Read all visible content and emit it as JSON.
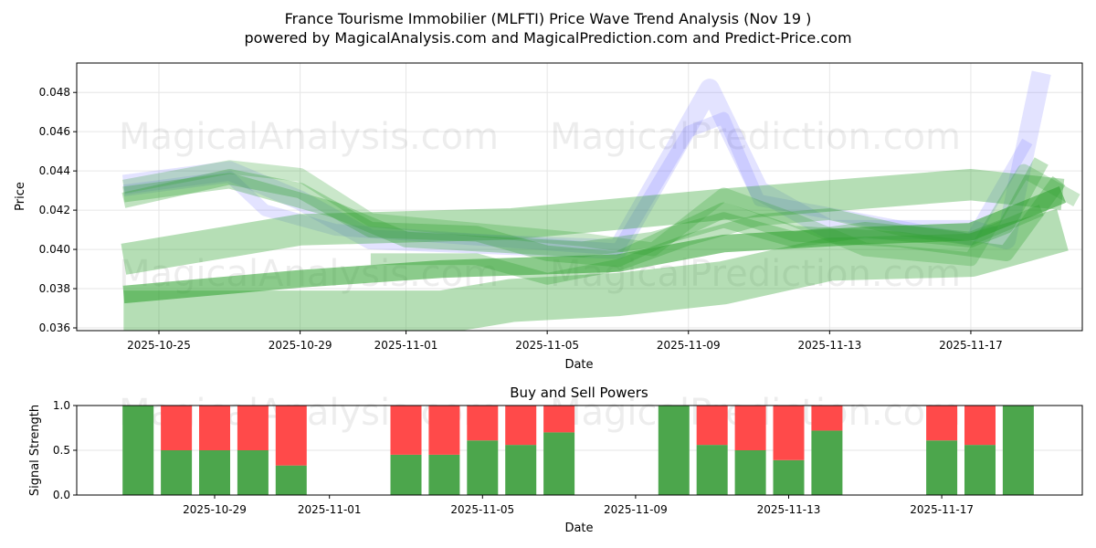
{
  "chart_data": [
    {
      "type": "line",
      "title": "France Tourisme Immobilier (MLFTI) Price Wave Trend Analysis (Nov 19 )",
      "subtitle": "powered by MagicalAnalysis.com and MagicalPrediction.com and Predict-Price.com",
      "xlabel": "Date",
      "ylabel": "Price",
      "x_unit": "days since 2025-10-25",
      "xlim": [
        -1.6,
        26.1
      ],
      "ylim": [
        0.03586,
        0.0495
      ],
      "xticks": [
        {
          "day": 0,
          "label": "2025-10-25"
        },
        {
          "day": 4,
          "label": "2025-10-29"
        },
        {
          "day": 7,
          "label": "2025-11-01"
        },
        {
          "day": 11,
          "label": "2025-11-05"
        },
        {
          "day": 15,
          "label": "2025-11-09"
        },
        {
          "day": 19,
          "label": "2025-11-13"
        },
        {
          "day": 23,
          "label": "2025-11-17"
        }
      ],
      "yticks": [
        0.036,
        0.038,
        0.04,
        0.042,
        0.044,
        0.046,
        0.048
      ],
      "ytick_labels": [
        "0.036",
        "0.038",
        "0.040",
        "0.042",
        "0.044",
        "0.046",
        "0.048"
      ],
      "grid": true,
      "watermarks": [
        "MagicalAnalysis.com",
        "MagicalPrediction.com"
      ],
      "series": [
        {
          "name": "wave-blue-1",
          "color": "#6666ff",
          "opacity": 0.18,
          "width": 0.001,
          "points": [
            [
              -1,
              0.0433
            ],
            [
              2,
              0.044
            ],
            [
              4,
              0.0425
            ],
            [
              6,
              0.0405
            ],
            [
              13,
              0.04
            ],
            [
              15.6,
              0.0482
            ],
            [
              17,
              0.043
            ],
            [
              19,
              0.041
            ],
            [
              23,
              0.041
            ],
            [
              24,
              0.0405
            ],
            [
              25,
              0.049
            ]
          ]
        },
        {
          "name": "wave-blue-2",
          "color": "#6666ff",
          "opacity": 0.18,
          "width": 0.0006,
          "points": [
            [
              -1,
              0.043
            ],
            [
              2,
              0.0437
            ],
            [
              3,
              0.042
            ],
            [
              5,
              0.041
            ],
            [
              13,
              0.04
            ],
            [
              15,
              0.046
            ],
            [
              16,
              0.0467
            ],
            [
              17,
              0.0425
            ],
            [
              23,
              0.0405
            ],
            [
              24.6,
              0.0455
            ]
          ]
        },
        {
          "name": "band-green-upper",
          "color": "#2ca02c",
          "opacity": 0.35,
          "width": 0.0016,
          "points": [
            [
              -1,
              0.0395
            ],
            [
              4,
              0.041
            ],
            [
              10,
              0.0413
            ],
            [
              16,
              0.0423
            ],
            [
              23,
              0.0433
            ],
            [
              25.6,
              0.0428
            ]
          ]
        },
        {
          "name": "band-green-lowest",
          "color": "#2ca02c",
          "opacity": 0.35,
          "width": 0.0022,
          "points": [
            [
              -1,
              0.0368
            ],
            [
              8,
              0.0368
            ],
            [
              10,
              0.0374
            ],
            [
              13,
              0.0377
            ],
            [
              16,
              0.0383
            ],
            [
              19,
              0.0395
            ],
            [
              23,
              0.0397
            ],
            [
              25.6,
              0.041
            ]
          ]
        },
        {
          "name": "band-green-rising",
          "color": "#2ca02c",
          "opacity": 0.55,
          "width": 0.0009,
          "points": [
            [
              -1,
              0.0377
            ],
            [
              4,
              0.0385
            ],
            [
              8,
              0.039
            ],
            [
              13,
              0.0393
            ],
            [
              16,
              0.0403
            ],
            [
              20,
              0.0407
            ],
            [
              23,
              0.0409
            ],
            [
              25.6,
              0.0428
            ]
          ]
        },
        {
          "name": "wave-green-1",
          "color": "#2ca02c",
          "opacity": 0.3,
          "width": 0.0008,
          "points": [
            [
              -1,
              0.0428
            ],
            [
              2,
              0.0435
            ],
            [
              5,
              0.042
            ],
            [
              7,
              0.0405
            ],
            [
              10,
              0.0402
            ],
            [
              12,
              0.04
            ],
            [
              14,
              0.0405
            ],
            [
              16,
              0.0415
            ],
            [
              18,
              0.0405
            ],
            [
              20,
              0.041
            ],
            [
              23,
              0.0405
            ],
            [
              24,
              0.0412
            ],
            [
              25,
              0.0445
            ]
          ]
        },
        {
          "name": "wave-green-2",
          "color": "#2ca02c",
          "opacity": 0.3,
          "width": 0.0008,
          "points": [
            [
              -1,
              0.0425
            ],
            [
              2,
              0.0437
            ],
            [
              4,
              0.043
            ],
            [
              6,
              0.041
            ],
            [
              9,
              0.0408
            ],
            [
              11,
              0.0398
            ],
            [
              13,
              0.0395
            ],
            [
              16,
              0.042
            ],
            [
              18,
              0.0408
            ],
            [
              21,
              0.0405
            ],
            [
              24,
              0.0398
            ],
            [
              25.5,
              0.0435
            ]
          ]
        },
        {
          "name": "wave-green-3",
          "color": "#2ca02c",
          "opacity": 0.25,
          "width": 0.0007,
          "points": [
            [
              -1,
              0.0432
            ],
            [
              2,
              0.0442
            ],
            [
              4,
              0.0438
            ],
            [
              6,
              0.0415
            ],
            [
              9,
              0.041
            ],
            [
              12,
              0.0405
            ],
            [
              14,
              0.04
            ],
            [
              16,
              0.0428
            ],
            [
              18,
              0.0415
            ],
            [
              20,
              0.04
            ],
            [
              23,
              0.0395
            ],
            [
              24.5,
              0.044
            ],
            [
              26,
              0.0425
            ]
          ]
        },
        {
          "name": "wave-green-4",
          "color": "#2ca02c",
          "opacity": 0.3,
          "width": 0.0006,
          "points": [
            [
              6,
              0.0395
            ],
            [
              9,
              0.0395
            ],
            [
              11,
              0.0385
            ],
            [
              13,
              0.0392
            ],
            [
              15,
              0.0405
            ],
            [
              17,
              0.0415
            ],
            [
              19,
              0.0418
            ],
            [
              21,
              0.041
            ],
            [
              23,
              0.0405
            ],
            [
              25,
              0.042
            ]
          ]
        }
      ]
    },
    {
      "type": "bar",
      "title": "Buy and Sell Powers",
      "xlabel": "Date",
      "ylabel": "Signal Strength",
      "ylim": [
        0,
        1
      ],
      "yticks": [
        "0.0",
        "0.5",
        "1.0"
      ],
      "xticks": [
        {
          "day": 4,
          "label": "2025-10-29"
        },
        {
          "day": 7,
          "label": "2025-11-01"
        },
        {
          "day": 11,
          "label": "2025-11-05"
        },
        {
          "day": 15,
          "label": "2025-11-09"
        },
        {
          "day": 19,
          "label": "2025-11-13"
        },
        {
          "day": 23,
          "label": "2025-11-17"
        }
      ],
      "categories": [
        "2025-10-27",
        "2025-10-28",
        "2025-10-29",
        "2025-10-30",
        "2025-10-31",
        "2025-11-03",
        "2025-11-04",
        "2025-11-05",
        "2025-11-06",
        "2025-11-07",
        "2025-11-10",
        "2025-11-11",
        "2025-11-12",
        "2025-11-13",
        "2025-11-14",
        "2025-11-17",
        "2025-11-18",
        "2025-11-19"
      ],
      "days": [
        2,
        3,
        4,
        5,
        6,
        9,
        10,
        11,
        12,
        13,
        16,
        17,
        18,
        19,
        20,
        23,
        24,
        25
      ],
      "series": [
        {
          "name": "Buy",
          "color": "#4ca64c",
          "values": [
            1.0,
            0.5,
            0.5,
            0.5,
            0.33,
            0.45,
            0.45,
            0.61,
            0.56,
            0.7,
            1.0,
            0.56,
            0.5,
            0.39,
            0.72,
            0.61,
            0.56,
            1.0
          ]
        },
        {
          "name": "Sell",
          "color": "#ff4a4a",
          "values": [
            0.0,
            0.5,
            0.5,
            0.5,
            0.67,
            0.55,
            0.55,
            0.39,
            0.44,
            0.3,
            0.0,
            0.44,
            0.5,
            0.61,
            0.28,
            0.39,
            0.44,
            0.0
          ]
        }
      ]
    }
  ]
}
